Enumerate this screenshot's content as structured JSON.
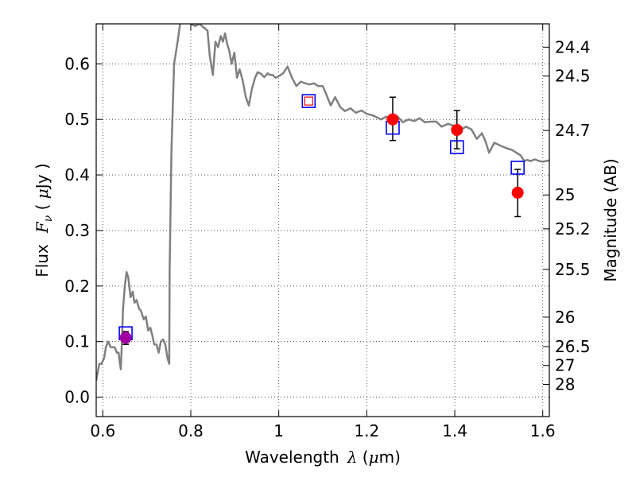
{
  "chart_data": {
    "type": "scatter",
    "xlabel_prefix": "Wavelength",
    "xlabel_symbol": "λ",
    "xlabel_unit_open": " (",
    "xlabel_unit_mu": "μ",
    "xlabel_unit_rest": "m)",
    "ylabel_prefix": "Flux",
    "ylabel_symbol": "F",
    "ylabel_sub": "ν",
    "ylabel_unit_open": " ( ",
    "ylabel_unit_mu": "μ",
    "ylabel_unit_rest": "Jy )",
    "y2label": "Magnitude (AB)",
    "xlim": [
      0.585,
      1.615
    ],
    "ylim": [
      -0.035,
      0.672
    ],
    "grid": true,
    "x_ticks": [
      0.6,
      0.8,
      1.0,
      1.2,
      1.4,
      1.6
    ],
    "x_tick_labels": [
      "0.6",
      "0.8",
      "1",
      "1.2",
      "1.4",
      "1.6"
    ],
    "y_ticks": [
      0.0,
      0.1,
      0.2,
      0.3,
      0.4,
      0.5,
      0.6
    ],
    "y_tick_labels": [
      "0.0",
      "0.1",
      "0.2",
      "0.3",
      "0.4",
      "0.5",
      "0.6"
    ],
    "y2_ticks": [
      {
        "label": "24.4",
        "flux": 0.63
      },
      {
        "label": "24.5",
        "flux": 0.578
      },
      {
        "label": "24.7",
        "flux": 0.48
      },
      {
        "label": "25",
        "flux": 0.364
      },
      {
        "label": "25.2",
        "flux": 0.303
      },
      {
        "label": "25.5",
        "flux": 0.23
      },
      {
        "label": "26",
        "flux": 0.144
      },
      {
        "label": "26.5",
        "flux": 0.091
      },
      {
        "label": "27",
        "flux": 0.057
      },
      {
        "label": "28",
        "flux": 0.023
      }
    ],
    "template_spectrum": {
      "name": "",
      "color": "#808080",
      "x": [
        0.585,
        0.592,
        0.597,
        0.603,
        0.607,
        0.612,
        0.618,
        0.622,
        0.627,
        0.632,
        0.636,
        0.639,
        0.641,
        0.643,
        0.646,
        0.65,
        0.654,
        0.658,
        0.663,
        0.668,
        0.672,
        0.677,
        0.682,
        0.687,
        0.693,
        0.698,
        0.703,
        0.708,
        0.713,
        0.717,
        0.722,
        0.727,
        0.732,
        0.737,
        0.742,
        0.747,
        0.751,
        0.752,
        0.756,
        0.762,
        0.77,
        0.777,
        0.782,
        0.79,
        0.8,
        0.81,
        0.82,
        0.83,
        0.838,
        0.843,
        0.85,
        0.856,
        0.862,
        0.868,
        0.873,
        0.878,
        0.883,
        0.887,
        0.893,
        0.899,
        0.905,
        0.911,
        0.918,
        0.925,
        0.932,
        0.939,
        0.946,
        0.952,
        0.96,
        0.967,
        0.975,
        0.98,
        0.986,
        0.993,
        1.0,
        1.01,
        1.02,
        1.03,
        1.04,
        1.05,
        1.06,
        1.07,
        1.08,
        1.09,
        1.1,
        1.108,
        1.118,
        1.128,
        1.14,
        1.15,
        1.163,
        1.175,
        1.188,
        1.2,
        1.21,
        1.22,
        1.232,
        1.245,
        1.258,
        1.27,
        1.282,
        1.295,
        1.308,
        1.32,
        1.332,
        1.345,
        1.358,
        1.37,
        1.385,
        1.4,
        1.412,
        1.425,
        1.438,
        1.45,
        1.462,
        1.47,
        1.478,
        1.49,
        1.503,
        1.518,
        1.53,
        1.54,
        1.55,
        1.558,
        1.565,
        1.572,
        1.582,
        1.592,
        1.6,
        1.615
      ],
      "y": [
        0.03,
        0.06,
        0.06,
        0.07,
        0.09,
        0.1,
        0.09,
        0.09,
        0.09,
        0.08,
        0.08,
        0.06,
        0.05,
        0.09,
        0.16,
        0.2,
        0.225,
        0.215,
        0.18,
        0.19,
        0.17,
        0.175,
        0.16,
        0.155,
        0.14,
        0.145,
        0.12,
        0.125,
        0.11,
        0.095,
        0.095,
        0.08,
        0.1,
        0.104,
        0.095,
        0.07,
        0.06,
        0.23,
        0.44,
        0.6,
        0.64,
        0.68,
        0.68,
        0.68,
        0.672,
        0.668,
        0.672,
        0.665,
        0.66,
        0.615,
        0.58,
        0.64,
        0.63,
        0.65,
        0.64,
        0.655,
        0.635,
        0.625,
        0.6,
        0.62,
        0.575,
        0.59,
        0.57,
        0.54,
        0.525,
        0.555,
        0.575,
        0.585,
        0.582,
        0.576,
        0.583,
        0.58,
        0.58,
        0.575,
        0.578,
        0.583,
        0.595,
        0.575,
        0.56,
        0.568,
        0.565,
        0.563,
        0.565,
        0.56,
        0.56,
        0.545,
        0.525,
        0.54,
        0.522,
        0.515,
        0.52,
        0.512,
        0.516,
        0.51,
        0.508,
        0.505,
        0.5,
        0.505,
        0.498,
        0.505,
        0.495,
        0.5,
        0.497,
        0.502,
        0.495,
        0.496,
        0.496,
        0.487,
        0.492,
        0.488,
        0.48,
        0.487,
        0.482,
        0.465,
        0.475,
        0.46,
        0.44,
        0.458,
        0.453,
        0.448,
        0.445,
        0.44,
        0.435,
        0.425,
        0.427,
        0.425,
        0.428,
        0.425,
        0.424,
        0.426
      ]
    },
    "observed": {
      "name": "",
      "color": "#ff0000",
      "points": [
        {
          "x": 0.652,
          "y": 0.107,
          "err_low": 0.095,
          "err_high": 0.118,
          "color": "#a000a0"
        },
        {
          "x": 1.259,
          "y": 0.5,
          "err_low": 0.462,
          "err_high": 0.54,
          "color": "#ff0000"
        },
        {
          "x": 1.405,
          "y": 0.481,
          "err_low": 0.447,
          "err_high": 0.516,
          "color": "#ff0000"
        },
        {
          "x": 1.543,
          "y": 0.368,
          "err_low": 0.325,
          "err_high": 0.41,
          "color": "#ff0000"
        }
      ]
    },
    "model": {
      "name": "",
      "color": "#0000ff",
      "points": [
        {
          "x": 0.652,
          "y": 0.115,
          "inner_color": ""
        },
        {
          "x": 1.068,
          "y": 0.533,
          "inner_color": "#ff0000"
        },
        {
          "x": 1.259,
          "y": 0.485,
          "inner_color": ""
        },
        {
          "x": 1.405,
          "y": 0.45,
          "inner_color": ""
        },
        {
          "x": 1.543,
          "y": 0.413,
          "inner_color": ""
        }
      ]
    }
  }
}
